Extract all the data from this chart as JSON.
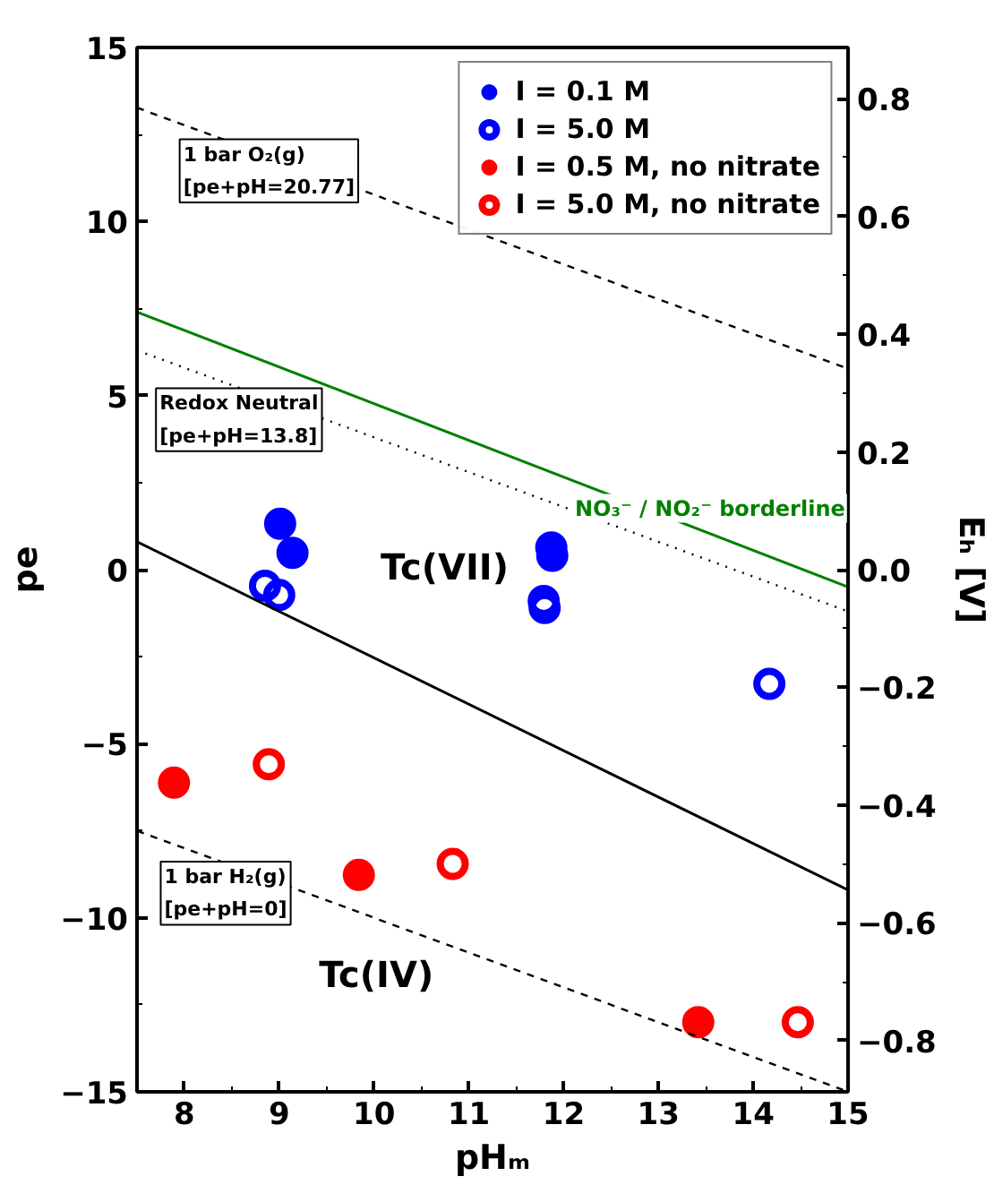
{
  "chart_data": {
    "type": "scatter",
    "xlabel": "pHₘ",
    "ylabel": "pe",
    "y2label": "Eₕ [V]",
    "xlim": [
      7.5,
      15
    ],
    "xticks": [
      8,
      9,
      10,
      11,
      12,
      13,
      14,
      15
    ],
    "ylim": [
      -15,
      15
    ],
    "yticks": [
      -15,
      -10,
      -5,
      0,
      5,
      10,
      15
    ],
    "y2lim": [
      -0.887,
      0.887
    ],
    "y2ticks": [
      -0.8,
      -0.6,
      -0.4,
      -0.2,
      {
        "value": 0,
        "label": "0.0"
      },
      0.2,
      0.4,
      0.6,
      0.8
    ],
    "grid": false,
    "legend": "top right",
    "series": [
      {
        "name": "I = 0.1 M",
        "color": "#0000ff",
        "marker": "circle",
        "x": [
          9.01,
          9.14,
          11.87,
          11.88
        ],
        "values": [
          1.32,
          0.48,
          0.64,
          0.4
        ]
      },
      {
        "name": "I = 5.0 M",
        "color": "#0000ff",
        "marker": "circle_open",
        "x": [
          8.85,
          9.0,
          11.79,
          11.8,
          14.17
        ],
        "values": [
          -0.46,
          -0.73,
          -0.9,
          -1.1,
          -3.28
        ]
      },
      {
        "name": "I = 0.5 M, no nitrate",
        "color": "#ff0000",
        "marker": "circle",
        "x": [
          7.89,
          9.84,
          13.42
        ],
        "values": [
          -6.12,
          -8.77,
          -13.0
        ]
      },
      {
        "name": "I = 5.0 M, no nitrate",
        "color": "#ff0000",
        "marker": "circle_open",
        "x": [
          8.89,
          10.83,
          14.47
        ],
        "values": [
          -5.59,
          -8.45,
          -13.0
        ]
      },
      {
        "type": "line",
        "color": "#000000",
        "line_style": "dashed",
        "marker": "none",
        "x": [
          7.5,
          15
        ],
        "values": [
          13.27,
          5.77
        ]
      },
      {
        "type": "line",
        "color": "#000000",
        "line_style": "dotted",
        "marker": "none",
        "x": [
          7.5,
          15
        ],
        "values": [
          6.3,
          -1.2
        ]
      },
      {
        "type": "line",
        "color": "#008000",
        "line_style": "solid",
        "marker": "none",
        "x": [
          7.5,
          15
        ],
        "values": [
          7.4,
          -0.5
        ]
      },
      {
        "type": "line",
        "color": "#000000",
        "line_style": "solid",
        "marker": "none",
        "x": [
          7.5,
          15
        ],
        "values": [
          0.8,
          -9.2
        ]
      },
      {
        "type": "line",
        "color": "#000000",
        "line_style": "dashed",
        "marker": "none",
        "x": [
          7.5,
          15
        ],
        "values": [
          -7.5,
          -15
        ]
      }
    ],
    "annotations": [
      "1 bar O₂(g)\n[pe+pH=20.77]",
      "Redox Neutral\n[pe+pH=13.8]",
      "1 bar H₂(g)\n[pe+pH=0]",
      "NO₃⁻ / NO₂⁻ borderline",
      "Tc(VII)",
      "Tc(IV)"
    ]
  }
}
